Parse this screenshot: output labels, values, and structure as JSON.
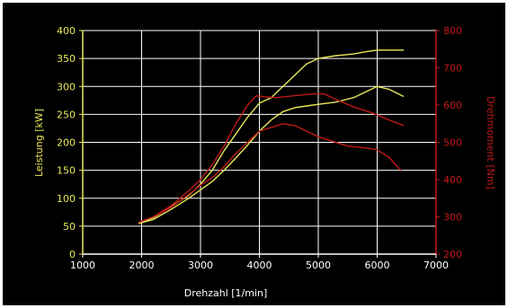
{
  "chart_data": {
    "type": "line",
    "xlabel": "Drehzahl [1/min]",
    "ylabel_left": "Leistung [kW]",
    "ylabel_right": "Drehmoment [Nm]",
    "xlim": [
      1000,
      7000
    ],
    "ylim_left": [
      0,
      400
    ],
    "ylim_right": [
      200,
      800
    ],
    "xticks": [
      "1000",
      "2000",
      "3000",
      "4000",
      "5000",
      "6000",
      "7000"
    ],
    "yticks_left": [
      "0",
      "50",
      "100",
      "150",
      "200",
      "250",
      "300",
      "350",
      "400"
    ],
    "yticks_right": [
      "200",
      "300",
      "400",
      "500",
      "600",
      "700",
      "800"
    ],
    "grid": true,
    "colors": {
      "background": "#000000",
      "grid": "#ffffff",
      "axis": "#ffffff",
      "left_axis_text": "#e8e85a",
      "right_axis_text": "#c01818",
      "power_series": "#e8e85a",
      "torque_series": "#c01818"
    },
    "series": [
      {
        "axis": "left",
        "color_key": "power_series",
        "points": [
          [
            1950,
            55
          ],
          [
            2200,
            65
          ],
          [
            2500,
            85
          ],
          [
            2800,
            105
          ],
          [
            3000,
            125
          ],
          [
            3200,
            150
          ],
          [
            3400,
            185
          ],
          [
            3600,
            215
          ],
          [
            3800,
            245
          ],
          [
            4000,
            270
          ],
          [
            4200,
            280
          ],
          [
            4400,
            300
          ],
          [
            4600,
            320
          ],
          [
            4800,
            340
          ],
          [
            5000,
            350
          ],
          [
            5300,
            355
          ],
          [
            5600,
            358
          ],
          [
            5800,
            362
          ],
          [
            6000,
            365
          ],
          [
            6200,
            365
          ],
          [
            6450,
            365
          ]
        ]
      },
      {
        "axis": "left",
        "color_key": "power_series",
        "points": [
          [
            1950,
            55
          ],
          [
            2200,
            62
          ],
          [
            2500,
            80
          ],
          [
            2800,
            100
          ],
          [
            3000,
            115
          ],
          [
            3200,
            130
          ],
          [
            3400,
            150
          ],
          [
            3600,
            172
          ],
          [
            3800,
            195
          ],
          [
            4000,
            220
          ],
          [
            4200,
            240
          ],
          [
            4400,
            255
          ],
          [
            4600,
            262
          ],
          [
            4800,
            265
          ],
          [
            5000,
            268
          ],
          [
            5300,
            272
          ],
          [
            5600,
            280
          ],
          [
            5800,
            290
          ],
          [
            6000,
            300
          ],
          [
            6200,
            295
          ],
          [
            6450,
            282
          ]
        ]
      },
      {
        "axis": "right",
        "color_key": "torque_series",
        "points": [
          [
            1950,
            285
          ],
          [
            2200,
            300
          ],
          [
            2500,
            330
          ],
          [
            2800,
            370
          ],
          [
            3000,
            400
          ],
          [
            3200,
            440
          ],
          [
            3400,
            490
          ],
          [
            3600,
            550
          ],
          [
            3800,
            600
          ],
          [
            3950,
            625
          ],
          [
            4100,
            622
          ],
          [
            4300,
            620
          ],
          [
            4600,
            625
          ],
          [
            4900,
            630
          ],
          [
            5100,
            630
          ],
          [
            5300,
            615
          ],
          [
            5600,
            595
          ],
          [
            5900,
            580
          ],
          [
            6200,
            560
          ],
          [
            6450,
            545
          ]
        ]
      },
      {
        "axis": "right",
        "color_key": "torque_series",
        "points": [
          [
            1950,
            285
          ],
          [
            2200,
            300
          ],
          [
            2500,
            325
          ],
          [
            2800,
            360
          ],
          [
            3000,
            385
          ],
          [
            3200,
            405
          ],
          [
            3400,
            435
          ],
          [
            3600,
            470
          ],
          [
            3800,
            500
          ],
          [
            4000,
            530
          ],
          [
            4200,
            540
          ],
          [
            4400,
            550
          ],
          [
            4600,
            545
          ],
          [
            4800,
            530
          ],
          [
            5000,
            515
          ],
          [
            5200,
            505
          ],
          [
            5500,
            490
          ],
          [
            5800,
            485
          ],
          [
            6000,
            480
          ],
          [
            6200,
            460
          ],
          [
            6400,
            425
          ]
        ]
      }
    ]
  }
}
